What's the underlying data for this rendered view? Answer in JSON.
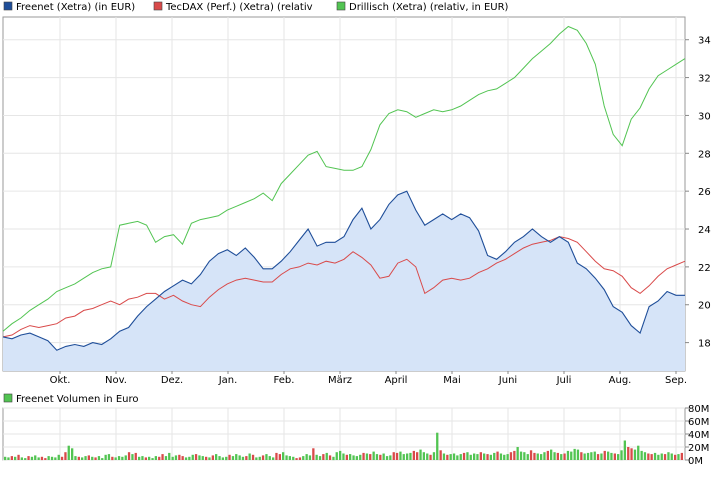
{
  "chart_data": [
    {
      "type": "line",
      "x_ticks": [
        "Okt.",
        "Nov.",
        "Dez.",
        "Jan.",
        "Feb.",
        "März",
        "April",
        "Mai",
        "Juni",
        "Juli",
        "Aug.",
        "Sep."
      ],
      "y_ticks": [
        18,
        20,
        22,
        24,
        26,
        28,
        30,
        32,
        34
      ],
      "ylim": [
        16.5,
        35.2
      ],
      "legend_position": "top",
      "grid": true,
      "series": [
        {
          "name": "Freenet (Xetra) (in EUR)",
          "color": "#1f4e99",
          "fill": "#d6e4f8",
          "values": [
            18.3,
            18.2,
            18.4,
            18.5,
            18.3,
            18.1,
            17.6,
            17.8,
            17.9,
            17.8,
            18.0,
            17.9,
            18.2,
            18.6,
            18.8,
            19.4,
            19.9,
            20.3,
            20.7,
            21.0,
            21.3,
            21.1,
            21.6,
            22.3,
            22.7,
            22.9,
            22.6,
            23.0,
            22.5,
            21.9,
            21.9,
            22.3,
            22.8,
            23.4,
            24.0,
            23.1,
            23.3,
            23.3,
            23.6,
            24.5,
            25.1,
            24.0,
            24.5,
            25.3,
            25.8,
            26.0,
            25.0,
            24.2,
            24.5,
            24.8,
            24.5,
            24.8,
            24.6,
            23.9,
            22.6,
            22.4,
            22.8,
            23.3,
            23.6,
            24.0,
            23.6,
            23.3,
            23.6,
            23.3,
            22.2,
            21.9,
            21.4,
            20.8,
            19.9,
            19.6,
            18.9,
            18.5,
            19.9,
            20.2,
            20.7,
            20.5,
            20.5
          ]
        },
        {
          "name": "TecDAX (Perf.) (Xetra) (relativ",
          "color": "#d94a4a",
          "values": [
            18.3,
            18.4,
            18.7,
            18.9,
            18.8,
            18.9,
            19.0,
            19.3,
            19.4,
            19.7,
            19.8,
            20.0,
            20.2,
            20.0,
            20.3,
            20.4,
            20.6,
            20.6,
            20.3,
            20.5,
            20.2,
            20.0,
            19.9,
            20.4,
            20.8,
            21.1,
            21.3,
            21.4,
            21.3,
            21.2,
            21.2,
            21.6,
            21.9,
            22.0,
            22.2,
            22.1,
            22.3,
            22.2,
            22.4,
            22.8,
            22.5,
            22.1,
            21.4,
            21.5,
            22.2,
            22.4,
            22.0,
            20.6,
            20.9,
            21.3,
            21.4,
            21.3,
            21.4,
            21.7,
            21.9,
            22.2,
            22.4,
            22.7,
            23.0,
            23.2,
            23.3,
            23.4,
            23.6,
            23.5,
            23.3,
            22.8,
            22.3,
            21.9,
            21.8,
            21.5,
            20.9,
            20.6,
            21.0,
            21.5,
            21.9,
            22.1,
            22.3
          ]
        },
        {
          "name": "Drillisch (Xetra) (relativ, in EUR)",
          "color": "#52c452",
          "values": [
            18.6,
            19.0,
            19.3,
            19.7,
            20.0,
            20.3,
            20.7,
            20.9,
            21.1,
            21.4,
            21.7,
            21.9,
            22.0,
            24.2,
            24.3,
            24.4,
            24.2,
            23.3,
            23.6,
            23.7,
            23.2,
            24.3,
            24.5,
            24.6,
            24.7,
            25.0,
            25.2,
            25.4,
            25.6,
            25.9,
            25.5,
            26.4,
            26.9,
            27.4,
            27.9,
            28.1,
            27.3,
            27.2,
            27.1,
            27.1,
            27.3,
            28.2,
            29.5,
            30.1,
            30.3,
            30.2,
            29.9,
            30.1,
            30.3,
            30.2,
            30.3,
            30.5,
            30.8,
            31.1,
            31.3,
            31.4,
            31.7,
            32.0,
            32.5,
            33.0,
            33.4,
            33.8,
            34.3,
            34.7,
            34.5,
            33.8,
            32.7,
            30.5,
            29.0,
            28.4,
            29.8,
            30.4,
            31.4,
            32.1,
            32.4,
            32.7,
            33.0
          ]
        }
      ]
    },
    {
      "type": "bar",
      "y_ticks": [
        "0M",
        "20M",
        "40M",
        "60M",
        "80M"
      ],
      "ylim": [
        0,
        80
      ],
      "series": [
        {
          "name": "Freenet Volumen in Euro",
          "color": "#52c452",
          "values": [
            5,
            4,
            6,
            5,
            8,
            4,
            3,
            6,
            5,
            7,
            4,
            5,
            3,
            6,
            5,
            4,
            8,
            5,
            12,
            22,
            18,
            6,
            5,
            4,
            6,
            7,
            5,
            4,
            6,
            3,
            8,
            9,
            5,
            4,
            6,
            5,
            7,
            12,
            9,
            11,
            5,
            6,
            4,
            5,
            3,
            6,
            5,
            9,
            6,
            11,
            5,
            7,
            8,
            6,
            4,
            5,
            8,
            9,
            7,
            6,
            5,
            4,
            7,
            9,
            6,
            4,
            5,
            8,
            6,
            9,
            7,
            5,
            6,
            10,
            8,
            4,
            5,
            7,
            9,
            6,
            4,
            11,
            9,
            12,
            7,
            6,
            5,
            3,
            4,
            6,
            9,
            7,
            18,
            8,
            6,
            9,
            11,
            7,
            5,
            12,
            14,
            10,
            8,
            9,
            7,
            6,
            8,
            11,
            10,
            9,
            13,
            9,
            8,
            10,
            6,
            7,
            12,
            11,
            13,
            9,
            10,
            11,
            14,
            12,
            16,
            12,
            10,
            8,
            12,
            42,
            15,
            10,
            8,
            9,
            10,
            7,
            9,
            11,
            12,
            8,
            10,
            9,
            12,
            10,
            9,
            8,
            11,
            13,
            10,
            8,
            9,
            12,
            14,
            20,
            13,
            12,
            9,
            15,
            11,
            10,
            9,
            12,
            14,
            16,
            12,
            11,
            9,
            10,
            14,
            13,
            17,
            16,
            12,
            10,
            11,
            12,
            13,
            9,
            10,
            14,
            13,
            11,
            10,
            9,
            15,
            30,
            20,
            18,
            16,
            22,
            14,
            12,
            10,
            9,
            11,
            8,
            10,
            9,
            12,
            10,
            8,
            9,
            11
          ]
        }
      ]
    }
  ]
}
